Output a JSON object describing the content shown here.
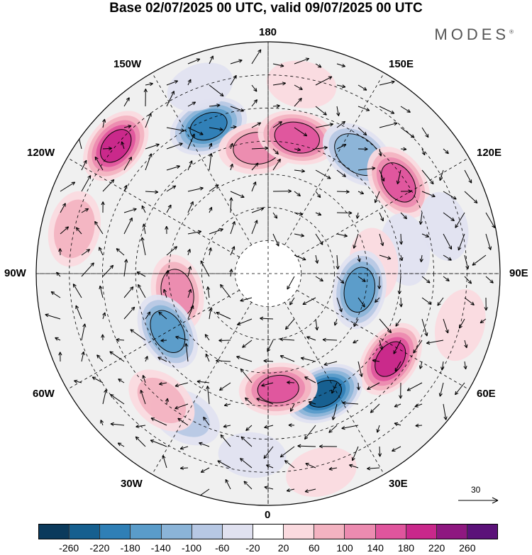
{
  "title": "Base 02/07/2025 00 UTC, valid 09/07/2025 00 UTC",
  "brand": "MODES",
  "brand_mark": "®",
  "longitude_labels": {
    "top": "180",
    "bottom": "0",
    "left": "90W",
    "right": "90E",
    "upper_left_1": "150W",
    "upper_left_2": "120W",
    "lower_left_1": "60W",
    "lower_left_2": "30W",
    "upper_right_1": "150E",
    "upper_right_2": "120E",
    "lower_right_1": "60E",
    "lower_right_2": "30E"
  },
  "reference_vector": {
    "value": "30"
  },
  "colorbar": {
    "colors": [
      "#0b3a5c",
      "#165f8f",
      "#2f7fb6",
      "#5a9cca",
      "#8bb4d8",
      "#b7c8e4",
      "#e0e1f0",
      "#ffffff",
      "#fadadf",
      "#f3b3c1",
      "#ec8bb0",
      "#e0559d",
      "#c9288b",
      "#8e1880",
      "#5b1279"
    ],
    "ticks": [
      "-260",
      "-220",
      "-180",
      "-140",
      "-100",
      "-60",
      "-20",
      "20",
      "60",
      "100",
      "140",
      "180",
      "220",
      "260"
    ]
  },
  "anomalies": [
    {
      "lat": 42,
      "lon": -158,
      "value": -190
    },
    {
      "lat": 30,
      "lon": -130,
      "value": 185
    },
    {
      "lat": 30,
      "lon": -103,
      "value": 100
    },
    {
      "lat": 52,
      "lon": -175,
      "value": 120
    },
    {
      "lat": 48,
      "lon": 168,
      "value": 170
    },
    {
      "lat": 45,
      "lon": 143,
      "value": -140
    },
    {
      "lat": 42,
      "lon": 125,
      "value": 160
    },
    {
      "lat": 48,
      "lon": 100,
      "value": -60
    },
    {
      "lat": 58,
      "lon": 95,
      "value": 60
    },
    {
      "lat": 62,
      "lon": 80,
      "value": -170
    },
    {
      "lat": 45,
      "lon": 55,
      "value": 190
    },
    {
      "lat": 50,
      "lon": 25,
      "value": -230
    },
    {
      "lat": 55,
      "lon": 5,
      "value": 150
    },
    {
      "lat": 62,
      "lon": -78,
      "value": 120
    },
    {
      "lat": 55,
      "lon": -60,
      "value": -170
    },
    {
      "lat": 40,
      "lon": -30,
      "value": -70
    },
    {
      "lat": 40,
      "lon": -40,
      "value": 80
    },
    {
      "lat": 30,
      "lon": 75,
      "value": 60
    },
    {
      "lat": 32,
      "lon": 170,
      "value": 40
    },
    {
      "lat": 28,
      "lon": 15,
      "value": 50
    },
    {
      "lat": 35,
      "lon": -5,
      "value": -30
    },
    {
      "lat": 30,
      "lon": -160,
      "value": -30
    },
    {
      "lat": 35,
      "lon": 105,
      "value": -40
    }
  ]
}
